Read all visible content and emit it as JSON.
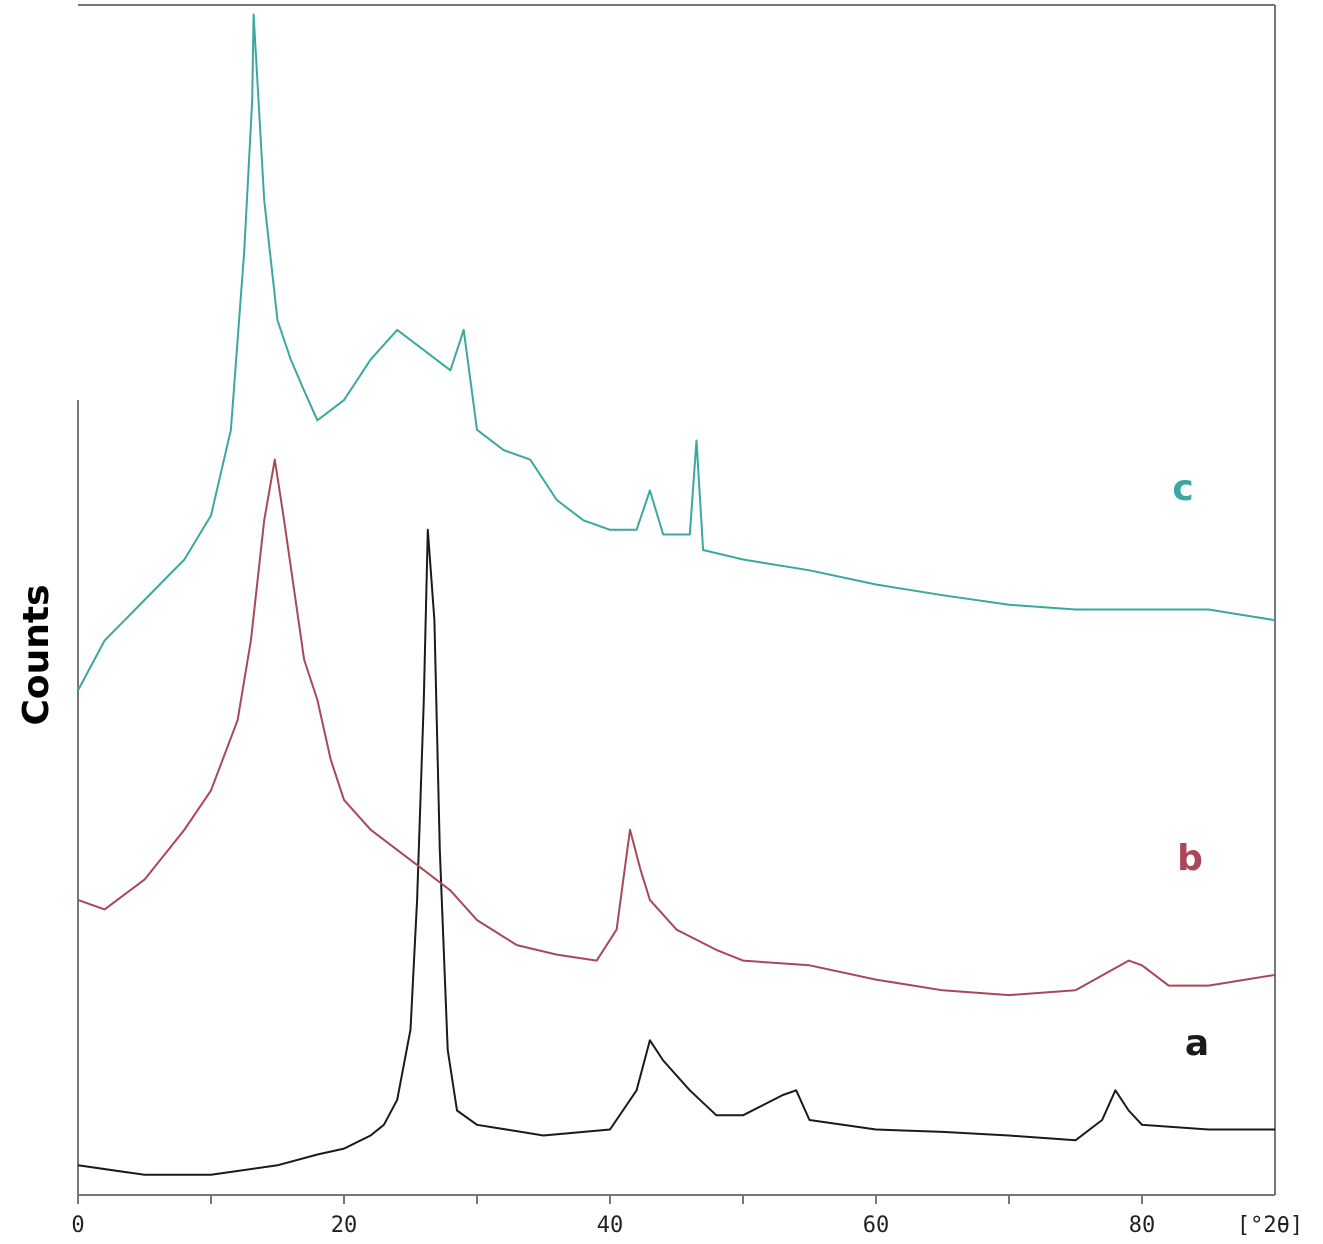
{
  "chart_data": {
    "type": "line",
    "y_label": "Counts",
    "x_label": "[°2θ]",
    "xlim": [
      0,
      90
    ],
    "ylim": [
      0,
      100
    ],
    "xticks": [
      0,
      20,
      40,
      60,
      80
    ],
    "xminorticks": [
      10,
      30,
      50,
      70
    ],
    "series": [
      {
        "name": "a",
        "color": "#1a1a1a",
        "x": [
          0,
          5,
          10,
          15,
          18,
          20,
          22,
          23,
          24,
          25,
          25.5,
          26,
          26.3,
          26.8,
          27.2,
          27.8,
          28.5,
          30,
          35,
          40,
          42,
          43,
          44,
          46,
          48,
          50,
          53,
          54,
          55,
          60,
          65,
          70,
          75,
          77,
          78,
          79,
          80,
          85,
          90
        ],
        "values": [
          2.5,
          1.7,
          1.7,
          2.5,
          3.4,
          3.9,
          5.0,
          5.9,
          8.0,
          13.9,
          24.8,
          41.6,
          55.9,
          48.3,
          29,
          12.2,
          7.1,
          5.9,
          5.0,
          5.5,
          8.8,
          13.0,
          11.3,
          8.8,
          6.7,
          6.7,
          8.4,
          8.8,
          6.3,
          5.5,
          5.3,
          5.0,
          4.6,
          6.3,
          8.8,
          7.1,
          5.9,
          5.5,
          5.5
        ]
      },
      {
        "name": "b",
        "color": "#a84858",
        "x": [
          0,
          2,
          5,
          8,
          10,
          12,
          13,
          14,
          14.8,
          15.5,
          17,
          18,
          19,
          20,
          22,
          24,
          26,
          28,
          30,
          33,
          36,
          39,
          40.5,
          41.5,
          42.3,
          43,
          45,
          48,
          50,
          55,
          60,
          65,
          70,
          75,
          79,
          80,
          82,
          85,
          90
        ],
        "values": [
          24.8,
          24.0,
          26.5,
          30.7,
          34.0,
          39.9,
          46.6,
          56.7,
          61.8,
          56.7,
          45,
          41.6,
          36.6,
          33.2,
          30.7,
          29,
          27.3,
          25.6,
          23.1,
          21,
          20.2,
          19.7,
          22.3,
          30.7,
          27.3,
          24.8,
          22.3,
          20.6,
          19.7,
          19.3,
          18.1,
          17.2,
          16.8,
          17.2,
          19.7,
          19.3,
          17.6,
          17.6,
          18.5
        ]
      },
      {
        "name": "c",
        "color": "#3aa8a0",
        "x": [
          0,
          2,
          5,
          8,
          10,
          11.5,
          12.5,
          13.1,
          13.2,
          14,
          15,
          16,
          17,
          18,
          20,
          22,
          24,
          26,
          28,
          29,
          30,
          32,
          34,
          36,
          38,
          40,
          42,
          43,
          44,
          46,
          46.5,
          47,
          50,
          55,
          60,
          65,
          70,
          75,
          80,
          85,
          90
        ],
        "values": [
          42.4,
          46.6,
          50,
          53.4,
          57.1,
          64.3,
          79.4,
          92,
          99.2,
          83.6,
          73.5,
          70.2,
          67.6,
          65.1,
          66.8,
          70.2,
          72.7,
          71,
          69.3,
          72.7,
          64.3,
          62.6,
          61.8,
          58.4,
          56.7,
          55.9,
          55.9,
          59.2,
          55.5,
          55.5,
          63.4,
          54.2,
          53.4,
          52.5,
          51.3,
          50.4,
          49.6,
          49.2,
          49.2,
          49.2,
          48.3
        ]
      }
    ]
  }
}
